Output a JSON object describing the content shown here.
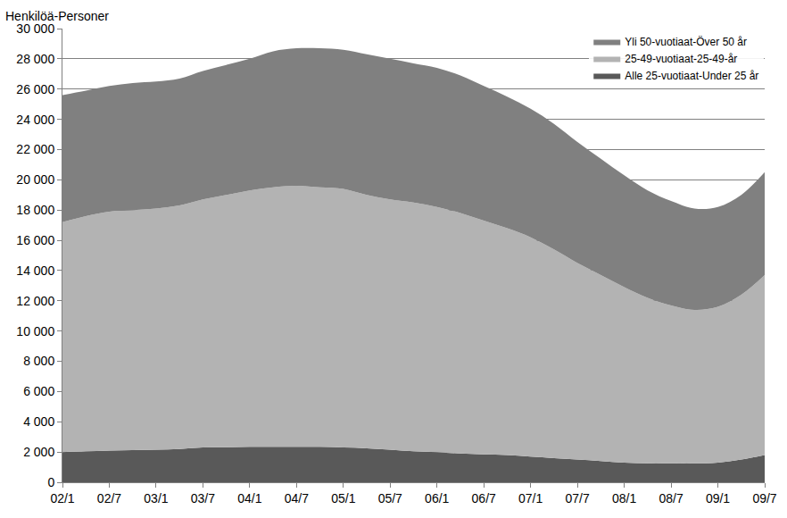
{
  "chart_data": {
    "type": "area",
    "stacked": true,
    "y_label": "Henkilöä-Personer",
    "categories": [
      "02/1",
      null,
      "02/7",
      null,
      "03/1",
      null,
      "03/7",
      null,
      "04/1",
      null,
      "04/7",
      null,
      "05/1",
      null,
      "05/7",
      null,
      "06/1",
      null,
      "06/7",
      null,
      "07/1",
      null,
      "07/7",
      null,
      "08/1",
      null,
      "08/7",
      null,
      "09/1",
      null,
      "09/7"
    ],
    "series": [
      {
        "name": "Alle 25-vuotiaat-Under 25 år",
        "color": "#595959",
        "values": [
          2000,
          2050,
          2100,
          2120,
          2150,
          2200,
          2300,
          2320,
          2350,
          2350,
          2350,
          2350,
          2300,
          2250,
          2150,
          2050,
          2000,
          1900,
          1850,
          1800,
          1700,
          1600,
          1500,
          1400,
          1300,
          1250,
          1250,
          1250,
          1300,
          1500,
          1800
        ]
      },
      {
        "name": "25-49-vuotiaat-25-49-år",
        "color": "#b3b3b3",
        "values": [
          15200,
          15550,
          15800,
          15880,
          15950,
          16100,
          16400,
          16680,
          16950,
          17150,
          17250,
          17150,
          17100,
          16750,
          16550,
          16450,
          16200,
          15900,
          15450,
          15000,
          14500,
          13800,
          13000,
          12300,
          11600,
          10950,
          10450,
          10150,
          10300,
          10900,
          11900
        ]
      },
      {
        "name": "Yli 50-vuotiaat-Över 50 år",
        "color": "#808080",
        "values": [
          8400,
          8300,
          8300,
          8400,
          8400,
          8400,
          8500,
          8600,
          8700,
          9000,
          9100,
          9200,
          9200,
          9300,
          9300,
          9200,
          9200,
          9100,
          8900,
          8700,
          8500,
          8300,
          8000,
          7700,
          7400,
          7100,
          6900,
          6700,
          6600,
          6600,
          6800
        ]
      }
    ],
    "ylim": [
      0,
      30000
    ],
    "yticks": [
      0,
      {
        "value": 2000,
        "label": "2 000"
      },
      {
        "value": 4000,
        "label": "4 000"
      },
      {
        "value": 6000,
        "label": "6 000"
      },
      {
        "value": 8000,
        "label": "8 000"
      },
      {
        "value": 10000,
        "label": "10 000"
      },
      {
        "value": 12000,
        "label": "12 000"
      },
      {
        "value": 14000,
        "label": "14 000"
      },
      {
        "value": 16000,
        "label": "16 000"
      },
      {
        "value": 18000,
        "label": "18 000"
      },
      {
        "value": 20000,
        "label": "20 000"
      },
      {
        "value": 22000,
        "label": "22 000"
      },
      {
        "value": 24000,
        "label": "24 000"
      },
      {
        "value": 26000,
        "label": "26 000"
      },
      {
        "value": 28000,
        "label": "28 000"
      },
      {
        "value": 30000,
        "label": "30 000"
      }
    ],
    "grid": true,
    "legend": "top right"
  }
}
